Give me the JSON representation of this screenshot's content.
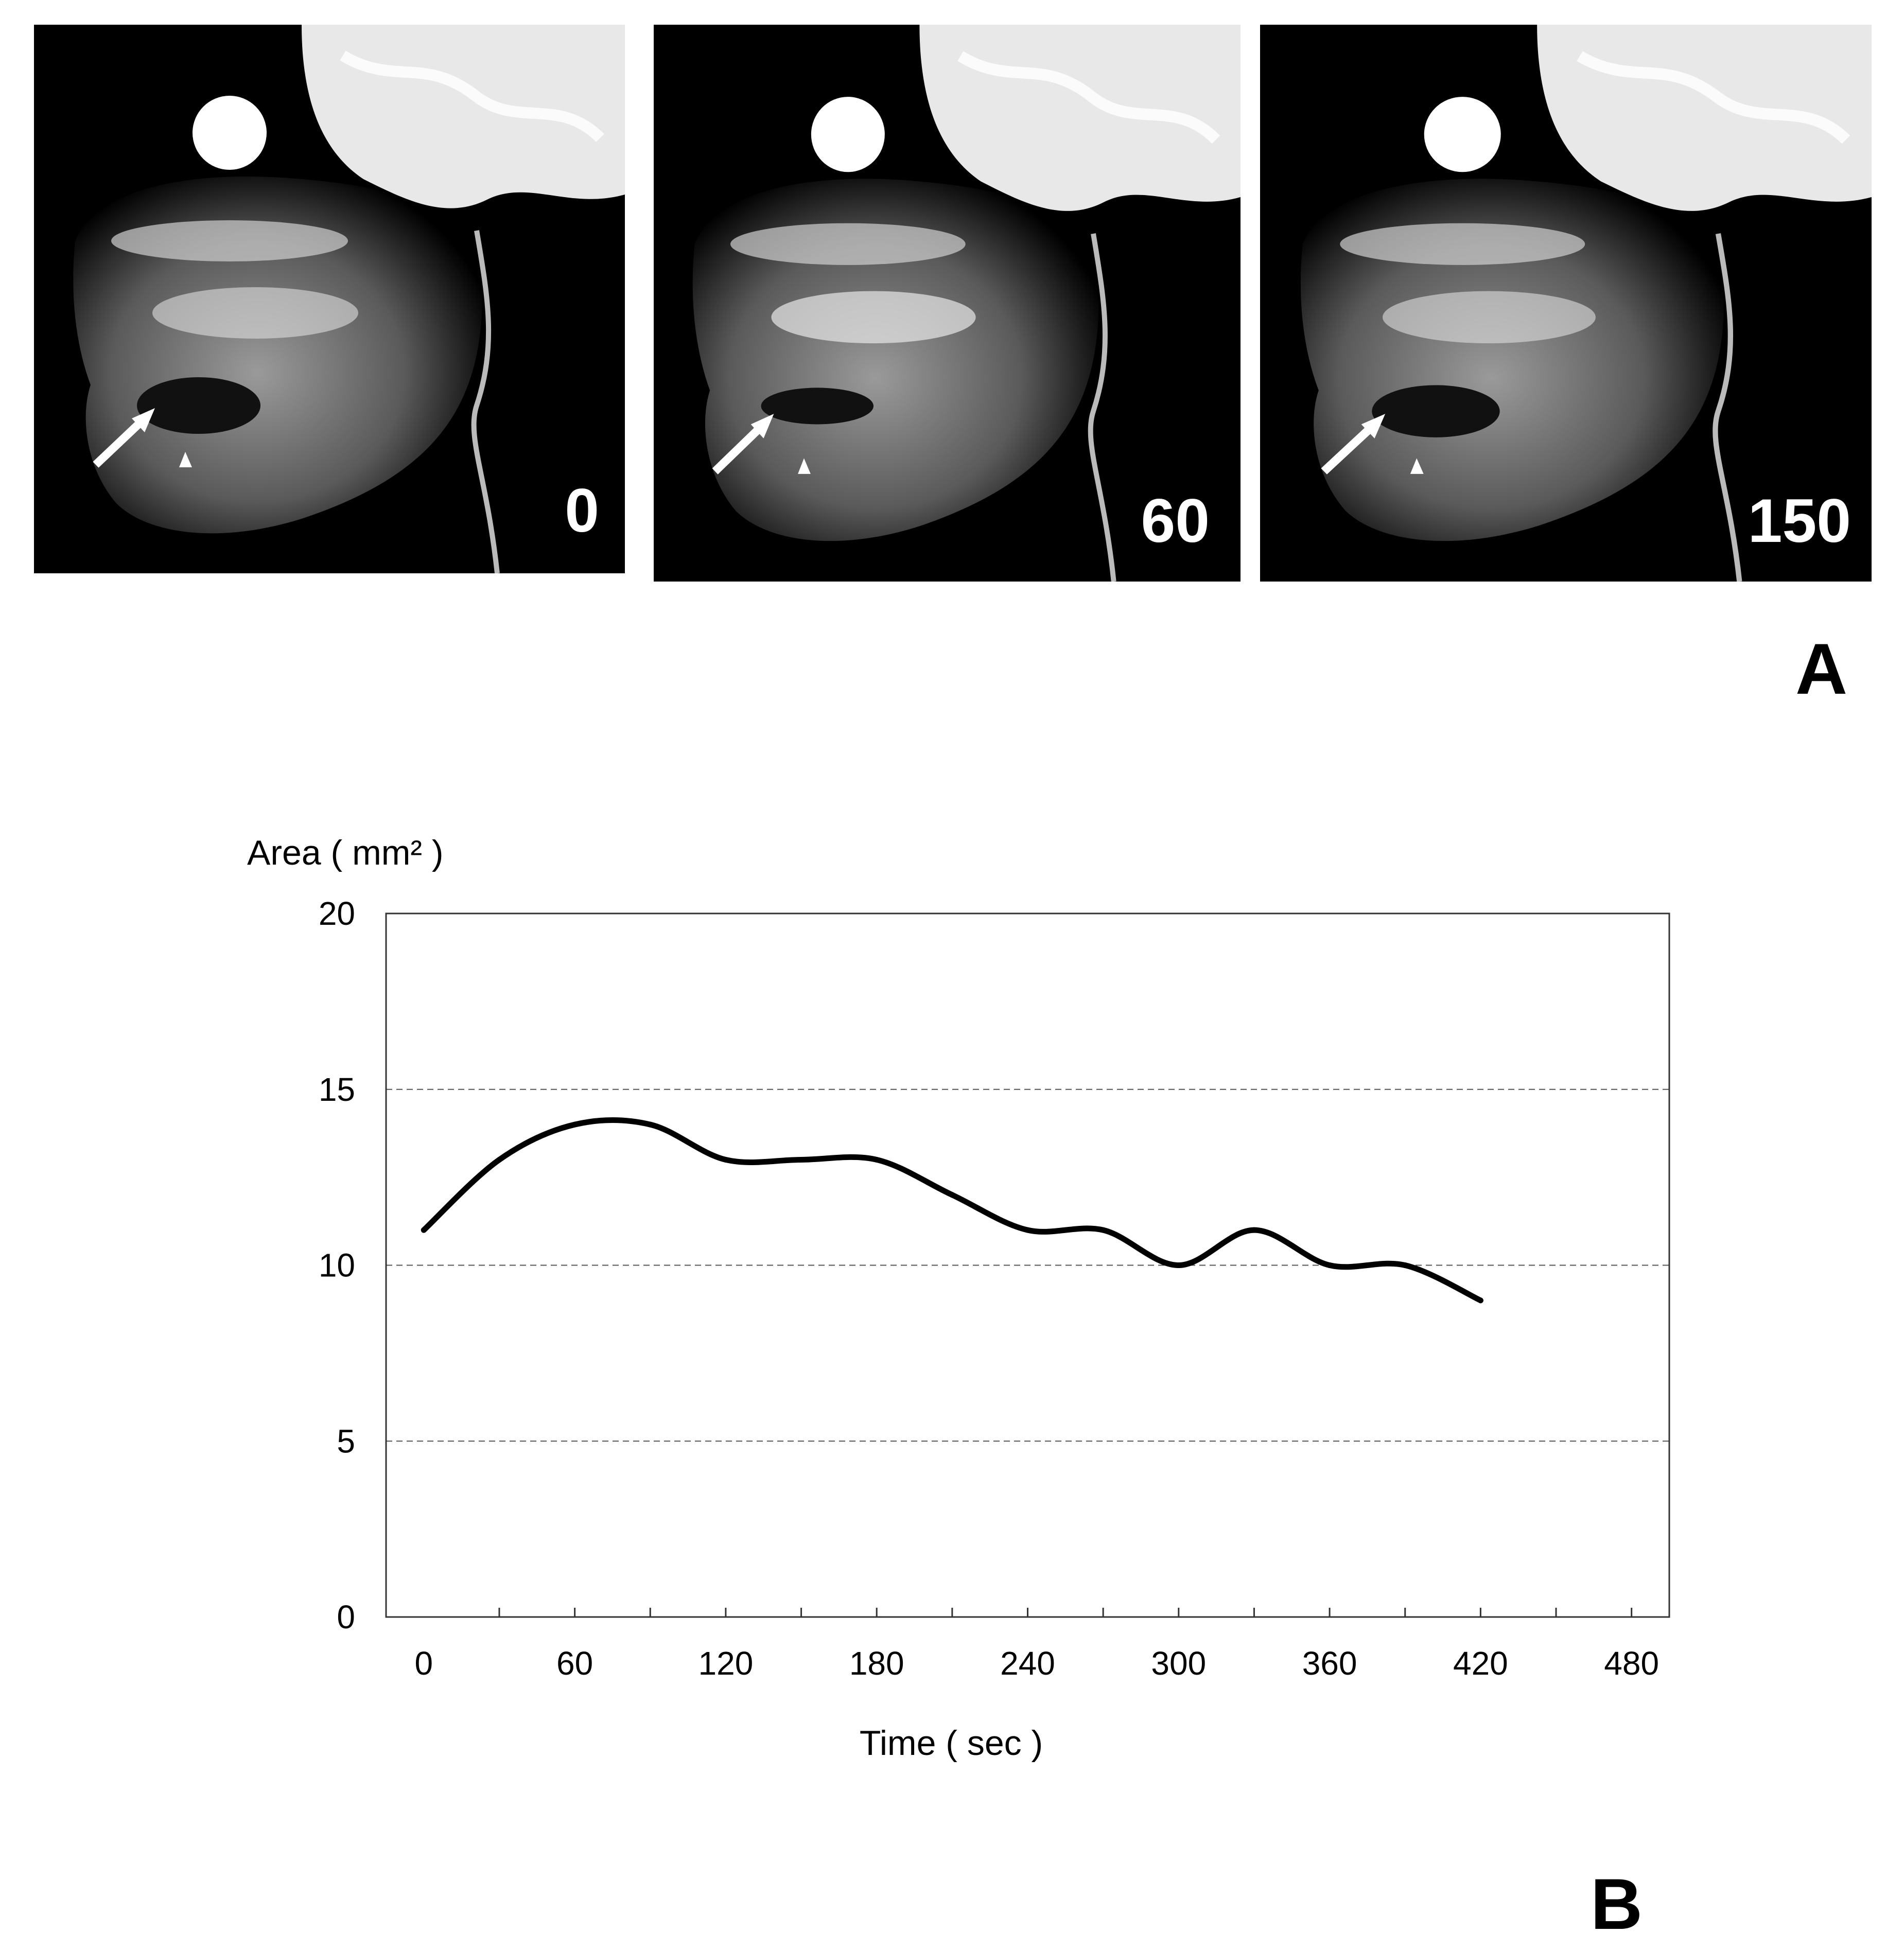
{
  "panel_a": {
    "letter": "A",
    "frames": [
      {
        "time_label": "0"
      },
      {
        "time_label": "60"
      },
      {
        "time_label": "150"
      }
    ]
  },
  "panel_b": {
    "letter": "B"
  },
  "chart_data": {
    "type": "line",
    "ylabel": "Area ( mm² )",
    "xlabel": "Time ( sec )",
    "xlim": [
      -15,
      495
    ],
    "ylim": [
      0,
      20
    ],
    "x_ticks": [
      0,
      60,
      120,
      180,
      240,
      300,
      360,
      420,
      480
    ],
    "y_ticks": [
      0,
      5,
      10,
      15,
      20
    ],
    "grid": "horizontal dashed at 5, 10, 15",
    "series": [
      {
        "color": "#000000",
        "x": [
          0,
          30,
          60,
          90,
          120,
          150,
          180,
          210,
          240,
          270,
          300,
          330,
          360,
          390,
          420
        ],
        "y": [
          11,
          13,
          14,
          14,
          13,
          13,
          13,
          12,
          11,
          11,
          10,
          11,
          10,
          10,
          9
        ]
      }
    ]
  }
}
